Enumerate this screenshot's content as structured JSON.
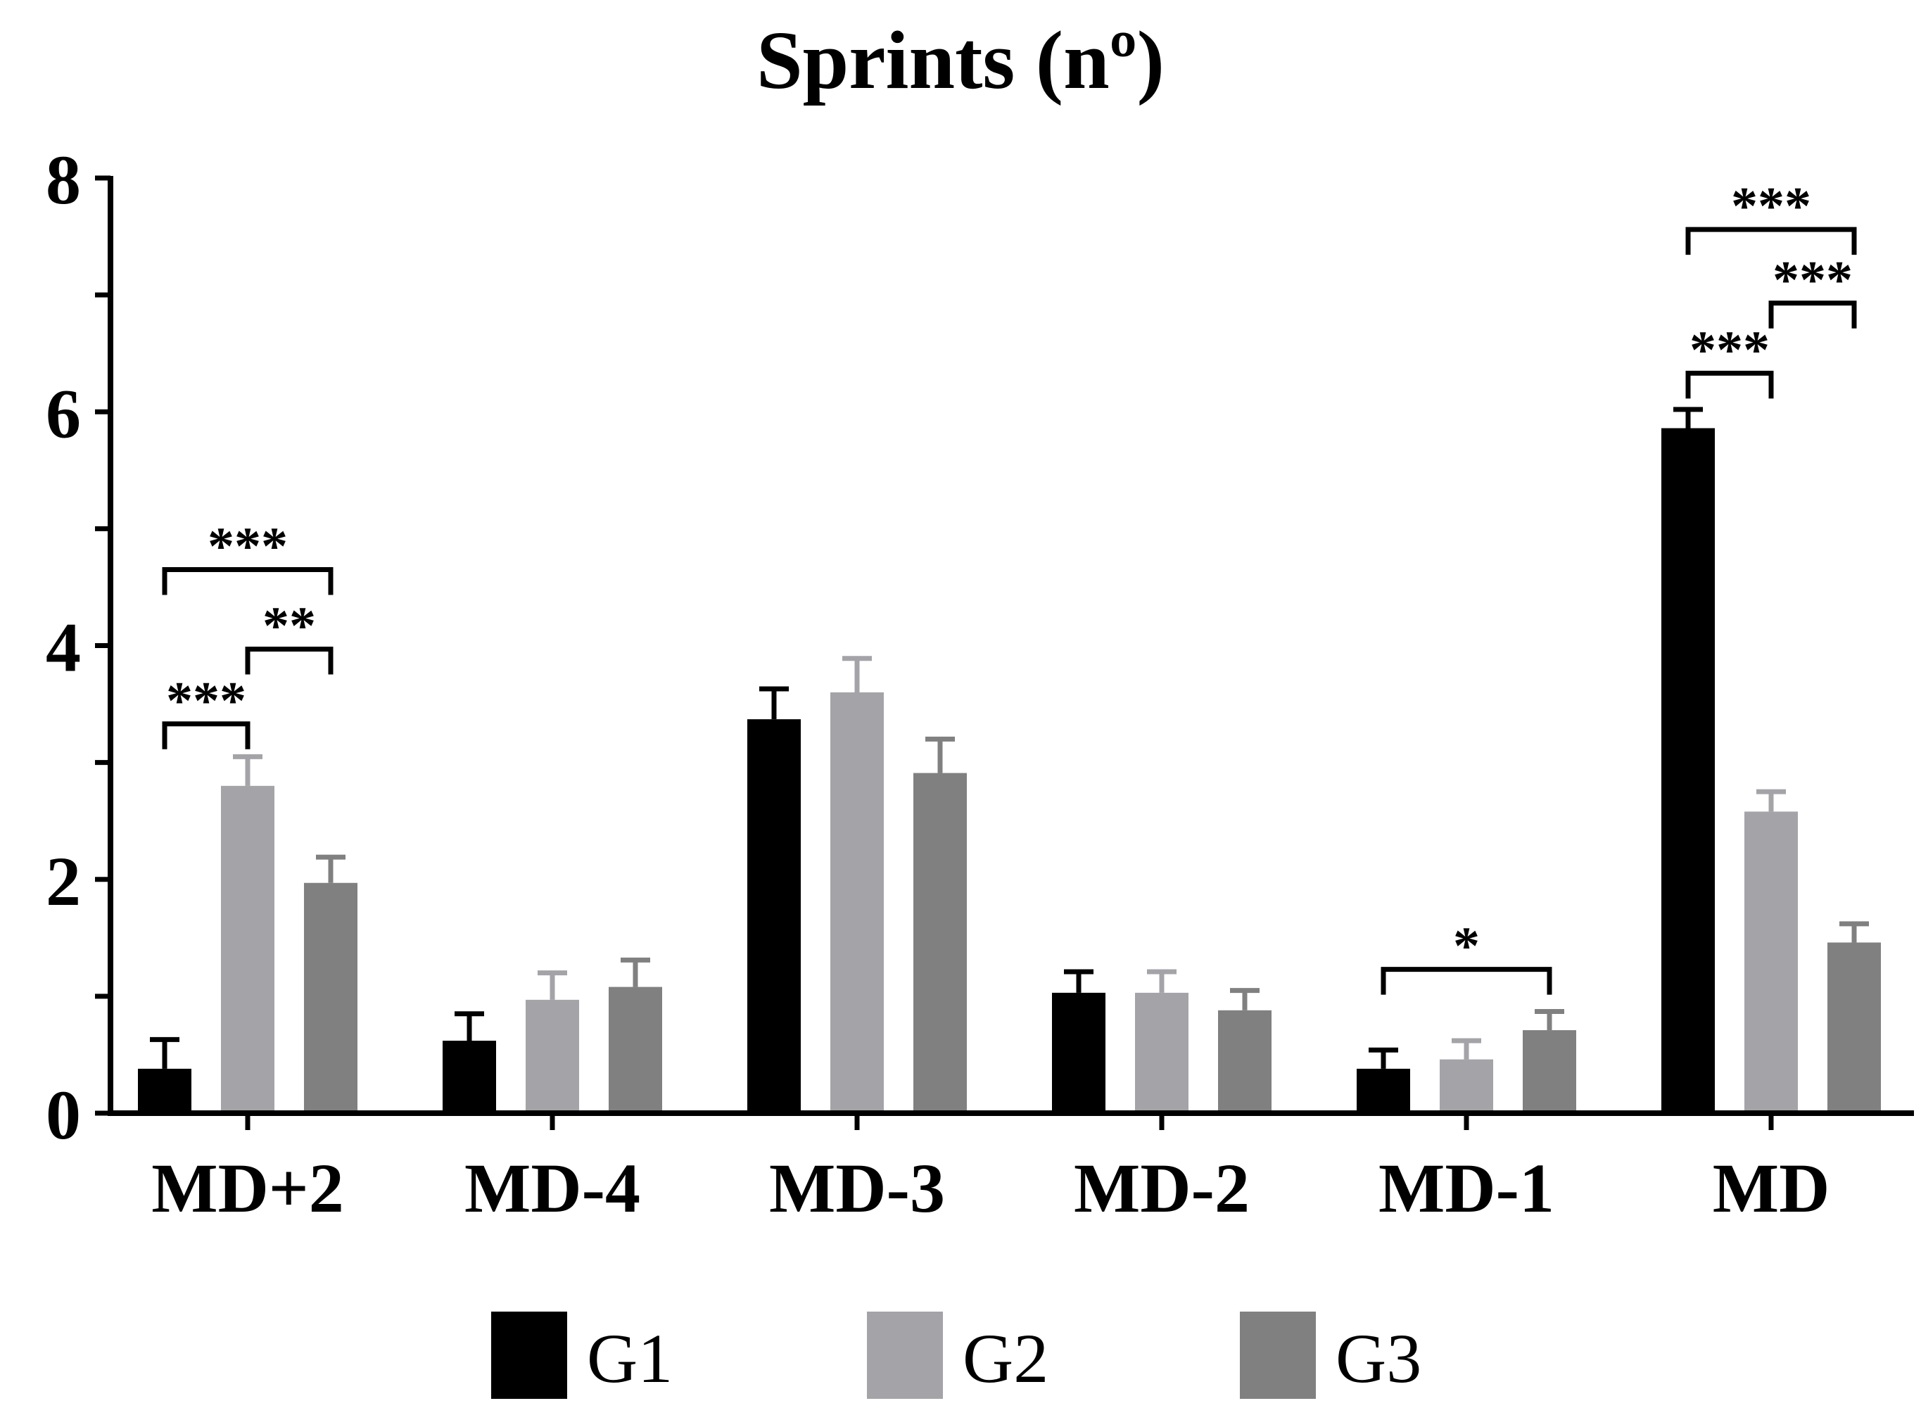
{
  "chart_data": {
    "type": "bar",
    "title": "Sprints (nº)",
    "xlabel": "",
    "ylabel": "",
    "ylim": [
      0,
      8
    ],
    "yticks": [
      0,
      2,
      4,
      6,
      8
    ],
    "grid": false,
    "legend_position": "bottom",
    "categories": [
      "MD+2",
      "MD-4",
      "MD-3",
      "MD-2",
      "MD-1",
      "MD"
    ],
    "series": [
      {
        "name": "G1",
        "color": "#000000",
        "values": [
          0.38,
          0.62,
          3.37,
          1.03,
          0.38,
          5.86
        ],
        "errors": [
          0.25,
          0.23,
          0.26,
          0.18,
          0.16,
          0.16
        ]
      },
      {
        "name": "G2",
        "color": "#a4a3a8",
        "values": [
          2.8,
          0.97,
          3.6,
          1.03,
          0.46,
          2.58
        ],
        "errors": [
          0.25,
          0.23,
          0.29,
          0.18,
          0.16,
          0.17
        ]
      },
      {
        "name": "G3",
        "color": "#808080",
        "values": [
          1.97,
          1.08,
          2.91,
          0.88,
          0.71,
          1.46
        ],
        "errors": [
          0.22,
          0.23,
          0.29,
          0.17,
          0.16,
          0.16
        ]
      }
    ],
    "significance": [
      {
        "category": "MD+2",
        "from": "G1",
        "to": "G2",
        "label": "***",
        "level": 3.33
      },
      {
        "category": "MD+2",
        "from": "G2",
        "to": "G3",
        "label": "**",
        "level": 3.97
      },
      {
        "category": "MD+2",
        "from": "G1",
        "to": "G3",
        "label": "***",
        "level": 4.65
      },
      {
        "category": "MD-1",
        "from": "G1",
        "to": "G3",
        "label": "*",
        "level": 1.23
      },
      {
        "category": "MD",
        "from": "G1",
        "to": "G2",
        "label": "***",
        "level": 6.33
      },
      {
        "category": "MD",
        "from": "G2",
        "to": "G3",
        "label": "***",
        "level": 6.93
      },
      {
        "category": "MD",
        "from": "G1",
        "to": "G3",
        "label": "***",
        "level": 7.56
      }
    ]
  }
}
